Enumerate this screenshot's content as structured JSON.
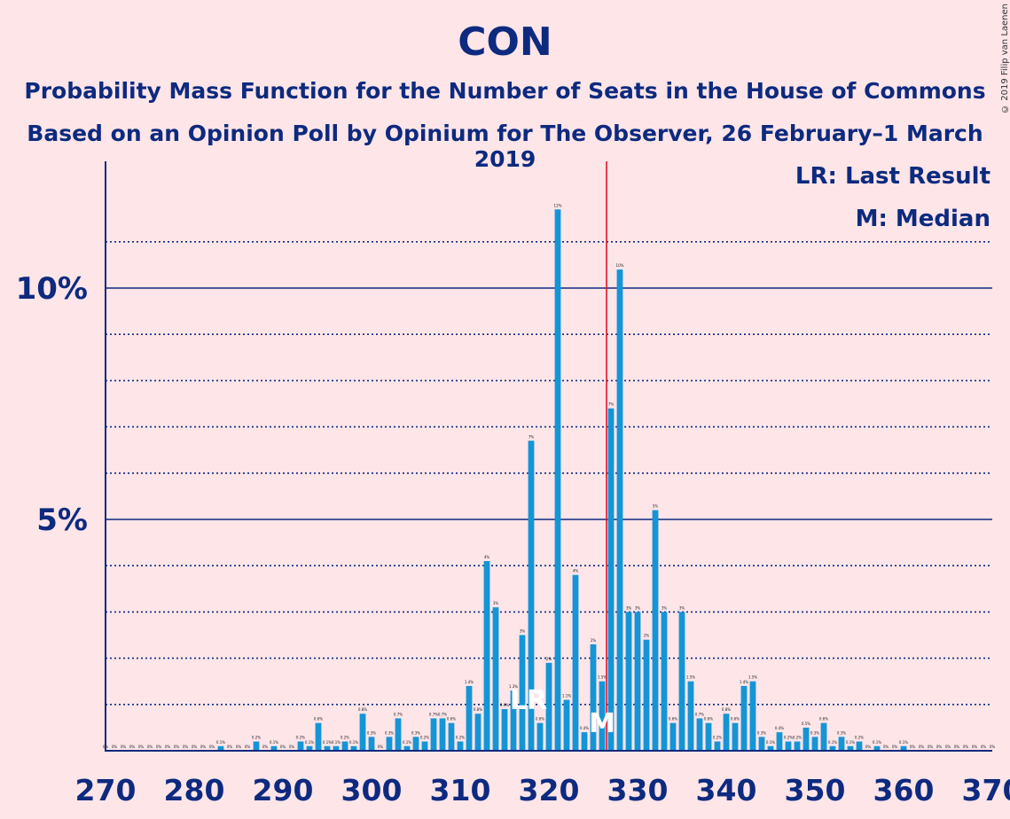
{
  "title": "CON",
  "subtitle_1": "Probability Mass Function for the Number of Seats in the House of Commons",
  "subtitle_2": "Based on an Opinion Poll by Opinium for The Observer, 26 February–1 March 2019",
  "copyright": "© 2019 Filip van Laenen",
  "legend": {
    "last_result": "LR: Last Result",
    "median": "M: Median"
  },
  "colors": {
    "background": "#fde5e8",
    "bar": "#1495d6",
    "axis": "#0d2a7f",
    "median_line": "#e0142a"
  },
  "chart_data": {
    "type": "bar",
    "title": "CON",
    "xlabel": "",
    "ylabel": "",
    "x_ticks": [
      270,
      280,
      290,
      300,
      310,
      320,
      330,
      340,
      350,
      360,
      370
    ],
    "y_ticks": [
      {
        "value": 5,
        "label": "5%"
      },
      {
        "value": 10,
        "label": "10%"
      }
    ],
    "xlim": [
      270,
      370
    ],
    "ylim": [
      0,
      12.5
    ],
    "grid": "dotted every 1%",
    "last_result_seat": 318,
    "last_result_marker": "LR",
    "median_seat": 326,
    "median_marker": "M",
    "seats": [
      270,
      271,
      272,
      273,
      274,
      275,
      276,
      277,
      278,
      279,
      280,
      281,
      282,
      283,
      284,
      285,
      286,
      287,
      288,
      289,
      290,
      291,
      292,
      293,
      294,
      295,
      296,
      297,
      298,
      299,
      300,
      301,
      302,
      303,
      304,
      305,
      306,
      307,
      308,
      309,
      310,
      311,
      312,
      313,
      314,
      315,
      316,
      317,
      318,
      319,
      320,
      321,
      322,
      323,
      324,
      325,
      326,
      327,
      328,
      329,
      330,
      331,
      332,
      333,
      334,
      335,
      336,
      337,
      338,
      339,
      340,
      341,
      342,
      343,
      344,
      345,
      346,
      347,
      348,
      349,
      350,
      351,
      352,
      353,
      354,
      355,
      356,
      357,
      358,
      359,
      360,
      361,
      362,
      363,
      364,
      365,
      366,
      367,
      368,
      369,
      370
    ],
    "values": [
      0,
      0,
      0,
      0,
      0,
      0,
      0,
      0,
      0,
      0,
      0,
      0,
      0,
      0.1,
      0,
      0,
      0,
      0.2,
      0,
      0.1,
      0,
      0,
      0.2,
      0.1,
      0.6,
      0.1,
      0.1,
      0.2,
      0.1,
      0.8,
      0.3,
      0,
      0.3,
      0.7,
      0.1,
      0.3,
      0.2,
      0.7,
      0.7,
      0.6,
      0.2,
      1.4,
      0.8,
      4.1,
      3.1,
      0.9,
      1.3,
      2.5,
      6.7,
      0.6,
      1.9,
      11.7,
      1.1,
      3.8,
      0.4,
      2.3,
      1.5,
      7.4,
      10.4,
      3.0,
      3.0,
      2.4,
      5.2,
      3.0,
      0.6,
      3.0,
      1.5,
      0.7,
      0.6,
      0.2,
      0.8,
      0.6,
      1.4,
      1.5,
      0.3,
      0.1,
      0.4,
      0.2,
      0.2,
      0.5,
      0.3,
      0.6,
      0.1,
      0.3,
      0.1,
      0.2,
      0,
      0.1,
      0,
      0,
      0.1,
      0,
      0,
      0,
      0,
      0,
      0,
      0,
      0,
      0,
      0
    ],
    "value_labels": [
      "0%",
      "0%",
      "0%",
      "0%",
      "0%",
      "0%",
      "0%",
      "0%",
      "0%",
      "0%",
      "0%",
      "0%",
      "0%",
      "0.1%",
      "0%",
      "0%",
      "0%",
      "0.2%",
      "0%",
      "0.1%",
      "0%",
      "0%",
      "0.2%",
      "0.1%",
      "0.6%",
      "0.1%",
      "0.1%",
      "0.2%",
      "0.1%",
      "0.8%",
      "0.3%",
      "0%",
      "0.3%",
      "0.7%",
      "0.1%",
      "0.3%",
      "0.2%",
      "0.7%",
      "0.7%",
      "0.6%",
      "0.2%",
      "1.4%",
      "0.8%",
      "4%",
      "3%",
      "0.9%",
      "1.3%",
      "3%",
      "7%",
      "0.6%",
      "2%",
      "12%",
      "1.1%",
      "4%",
      "0.4%",
      "2%",
      "1.5%",
      "7%",
      "10%",
      "3%",
      "3%",
      "2%",
      "5%",
      "3%",
      "0.6%",
      "3%",
      "1.5%",
      "0.7%",
      "0.6%",
      "0.2%",
      "0.8%",
      "0.6%",
      "1.4%",
      "1.5%",
      "0.3%",
      "0.1%",
      "0.4%",
      "0.2%",
      "0.2%",
      "0.5%",
      "0.3%",
      "0.6%",
      "0.1%",
      "0.3%",
      "0.1%",
      "0.2%",
      "0%",
      "0.1%",
      "0%",
      "0%",
      "0.1%",
      "0%",
      "0%",
      "0%",
      "0%",
      "0%",
      "0%",
      "0%",
      "0%",
      "0%",
      "0%"
    ]
  }
}
